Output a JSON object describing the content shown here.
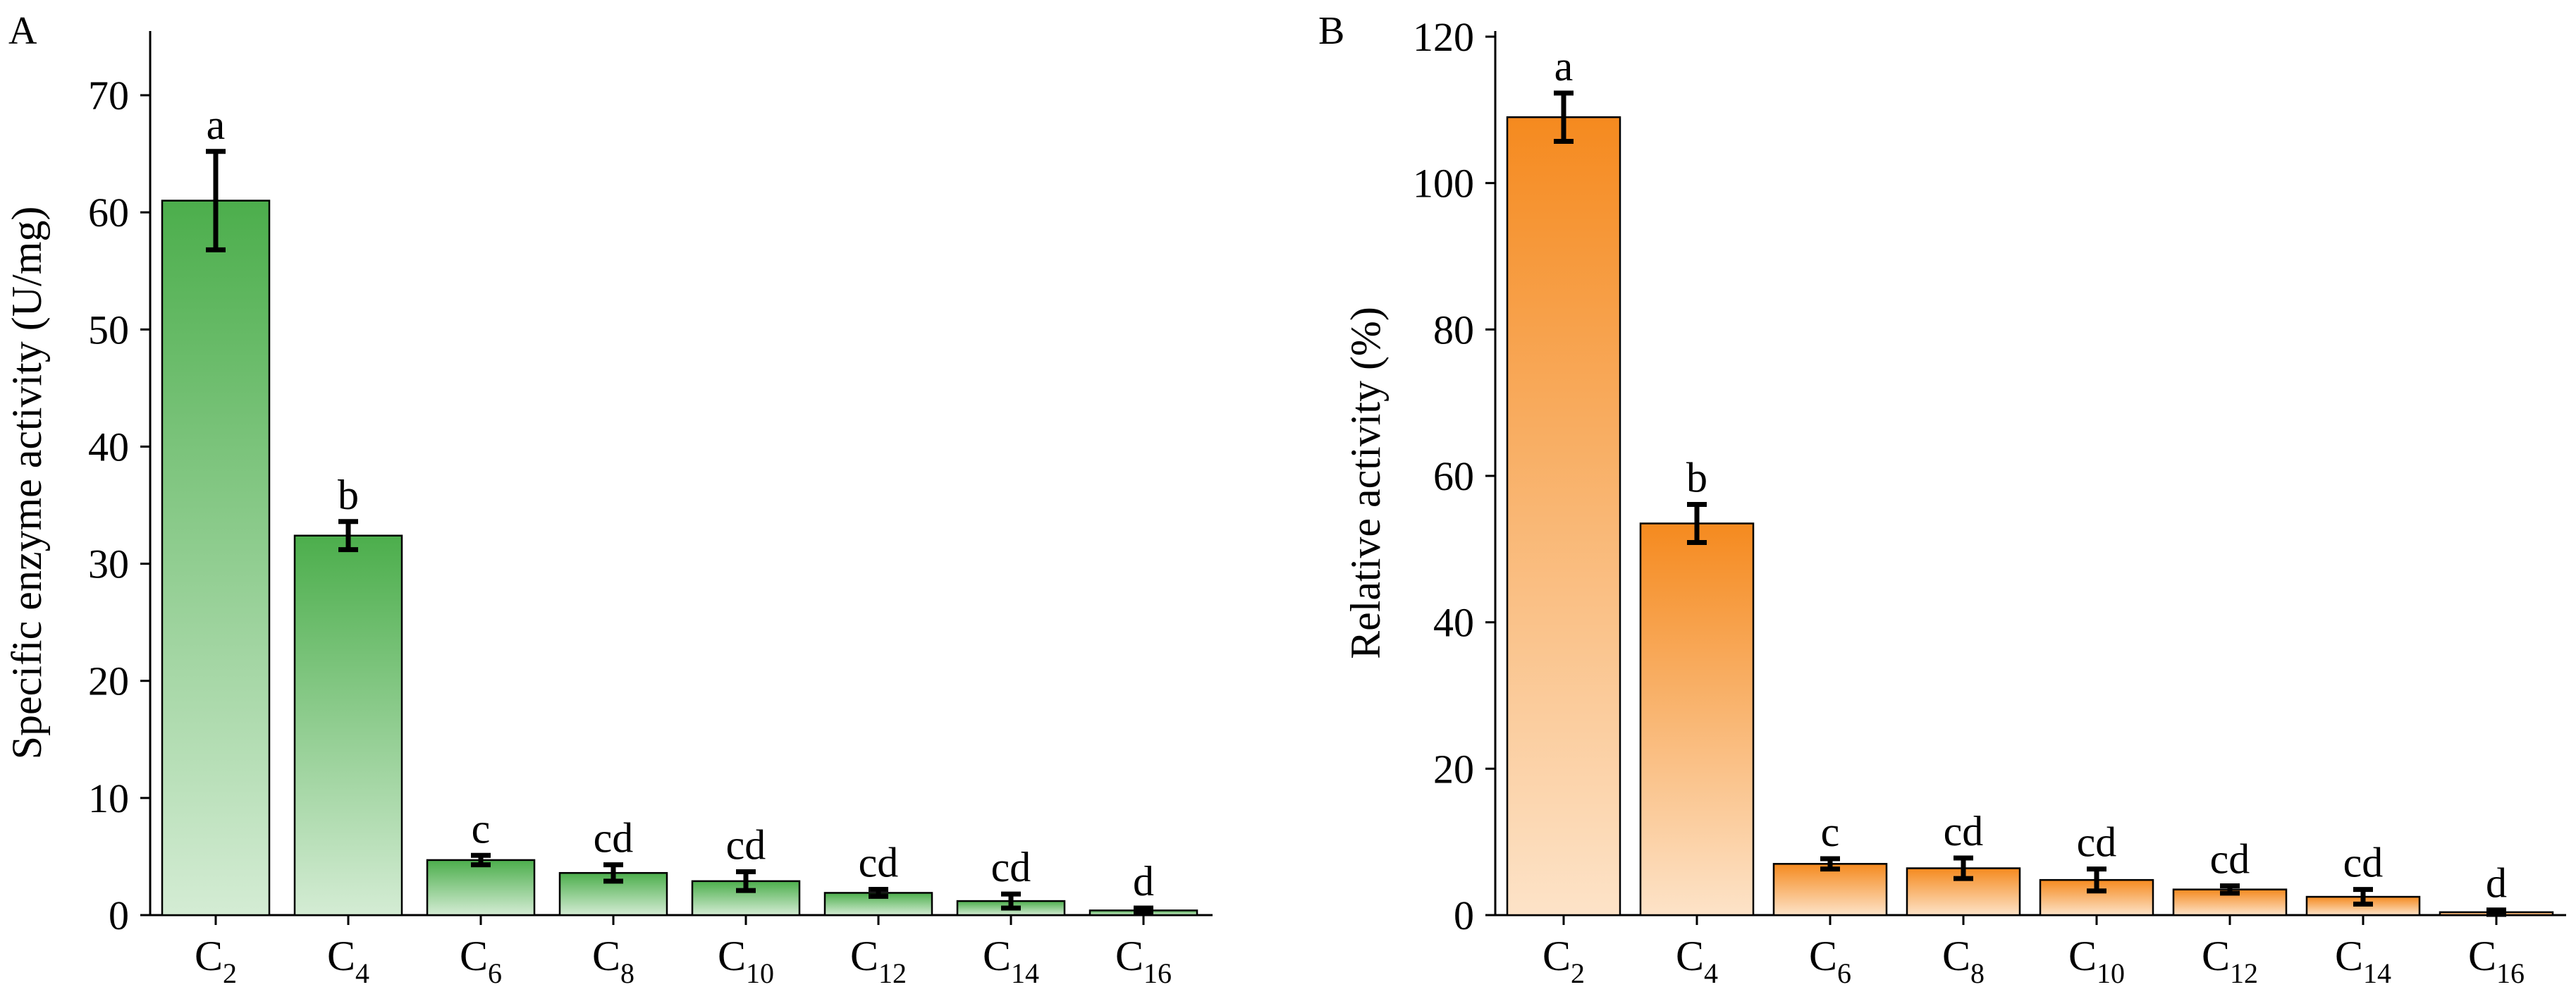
{
  "chart_data": [
    {
      "type": "bar",
      "panel_label": "A",
      "ylabel": "Specific enzyme activity (U/mg)",
      "ylim": [
        0,
        75
      ],
      "yticks": [
        0,
        10,
        20,
        30,
        40,
        50,
        60,
        70
      ],
      "categories": [
        {
          "base": "C",
          "sub": "2"
        },
        {
          "base": "C",
          "sub": "4"
        },
        {
          "base": "C",
          "sub": "6"
        },
        {
          "base": "C",
          "sub": "8"
        },
        {
          "base": "C",
          "sub": "10"
        },
        {
          "base": "C",
          "sub": "12"
        },
        {
          "base": "C",
          "sub": "14"
        },
        {
          "base": "C",
          "sub": "16"
        }
      ],
      "values": [
        61.0,
        32.4,
        4.7,
        3.6,
        2.9,
        1.9,
        1.2,
        0.4
      ],
      "errors": [
        4.2,
        1.2,
        0.4,
        0.7,
        0.8,
        0.3,
        0.6,
        0.2
      ],
      "significance": [
        "a",
        "b",
        "c",
        "cd",
        "cd",
        "cd",
        "cd",
        "d"
      ],
      "colors": {
        "top": "#4cae4c",
        "bottom": "#d4ecd4"
      }
    },
    {
      "type": "bar",
      "panel_label": "B",
      "ylabel": "Relative activity (%)",
      "ylim": [
        0,
        120
      ],
      "yticks": [
        0,
        20,
        40,
        60,
        80,
        100,
        120
      ],
      "categories": [
        {
          "base": "C",
          "sub": "2"
        },
        {
          "base": "C",
          "sub": "4"
        },
        {
          "base": "C",
          "sub": "6"
        },
        {
          "base": "C",
          "sub": "8"
        },
        {
          "base": "C",
          "sub": "10"
        },
        {
          "base": "C",
          "sub": "12"
        },
        {
          "base": "C",
          "sub": "14"
        },
        {
          "base": "C",
          "sub": "16"
        }
      ],
      "values": [
        109.0,
        53.5,
        7.0,
        6.4,
        4.8,
        3.5,
        2.5,
        0.4
      ],
      "errors": [
        3.3,
        2.6,
        0.7,
        1.4,
        1.5,
        0.5,
        1.0,
        0.3
      ],
      "significance": [
        "a",
        "b",
        "c",
        "cd",
        "cd",
        "cd",
        "cd",
        "d"
      ],
      "colors": {
        "top": "#f58a1f",
        "bottom": "#fde3c8"
      }
    }
  ]
}
